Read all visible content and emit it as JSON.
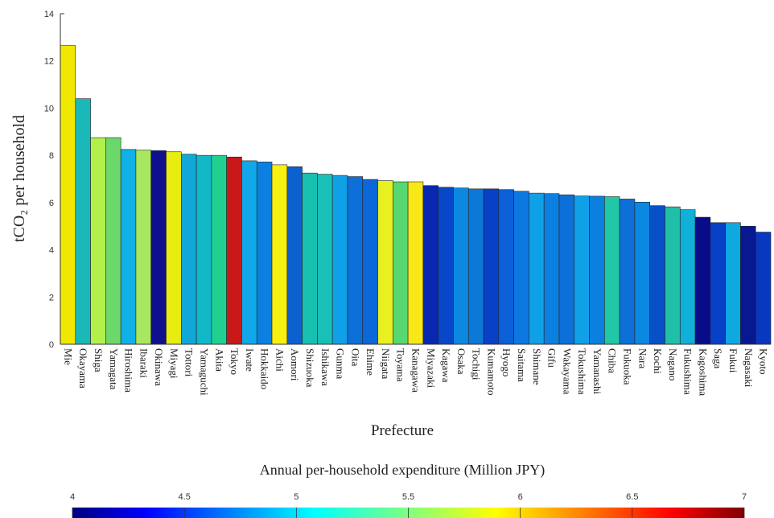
{
  "chart_data": [
    {
      "type": "bar",
      "y_label": "tCO₂ per household",
      "x_label": "Prefecture",
      "categories": [
        "Mie",
        "Okayama",
        "Shiga",
        "Yamagata",
        "Hiroshima",
        "Ibaraki",
        "Okinawa",
        "Miyagi",
        "Tottori",
        "Yamaguchi",
        "Akita",
        "Tokyo",
        "Iwate",
        "Hokkaido",
        "Aichi",
        "Aomori",
        "Shizuoka",
        "Ishikawa",
        "Gunma",
        "Oita",
        "Ehime",
        "Niigata",
        "Toyama",
        "Kanagawa",
        "Miyazaki",
        "Kagawa",
        "Osaka",
        "Tochigi",
        "Kumamoto",
        "Hyogo",
        "Saitama",
        "Shimane",
        "Gifu",
        "Wakayama",
        "Tokushima",
        "Yamanashi",
        "Chiba",
        "Fukuoka",
        "Nara",
        "Kochi",
        "Nagano",
        "Fukushima",
        "Kagoshima",
        "Saga",
        "Fukui",
        "Nagasaki",
        "Kyoto"
      ],
      "values": [
        12.65,
        10.4,
        8.75,
        8.75,
        8.25,
        8.22,
        8.2,
        8.15,
        8.05,
        8.0,
        8.0,
        7.93,
        7.77,
        7.72,
        7.6,
        7.52,
        7.25,
        7.2,
        7.15,
        7.1,
        6.98,
        6.93,
        6.88,
        6.88,
        6.72,
        6.65,
        6.62,
        6.58,
        6.58,
        6.55,
        6.48,
        6.4,
        6.38,
        6.33,
        6.28,
        6.27,
        6.25,
        6.15,
        6.02,
        5.87,
        5.82,
        5.7,
        5.38,
        5.15,
        5.15,
        5.0,
        4.75
      ],
      "colors": [
        "#f0e800",
        "#1ab8b8",
        "#b4f04c",
        "#6cd86c",
        "#10b0e8",
        "#a8e860",
        "#10108c",
        "#e8ec10",
        "#10a8d8",
        "#10b8c8",
        "#20d090",
        "#c81818",
        "#10a8e8",
        "#0c80e0",
        "#f8f010",
        "#0c60d0",
        "#18c0b0",
        "#18c0b8",
        "#10a0e8",
        "#0c70d8",
        "#0c68d8",
        "#e8f020",
        "#58d870",
        "#f8e818",
        "#0828b0",
        "#0848c8",
        "#0c88e0",
        "#0c78d8",
        "#0840c8",
        "#0c60d8",
        "#0c78e0",
        "#10a0e8",
        "#0c80e0",
        "#0c70d8",
        "#10a0e8",
        "#0c80e0",
        "#20c8a8",
        "#0c70d8",
        "#0c88e0",
        "#0850c8",
        "#20c0a8",
        "#10b0d8",
        "#080c88",
        "#0840c8",
        "#10a8e0",
        "#081890",
        "#0838c0"
      ],
      "ylim": [
        0,
        14
      ],
      "yticks": [
        0,
        2,
        4,
        6,
        8,
        10,
        12,
        14
      ]
    },
    {
      "type": "colorbar",
      "title": "Annual per-household expenditure (Million JPY)",
      "colormap": "jet",
      "lim": [
        4,
        7
      ],
      "ticks": [
        4,
        4.5,
        5,
        5.5,
        6,
        6.5,
        7
      ]
    }
  ]
}
